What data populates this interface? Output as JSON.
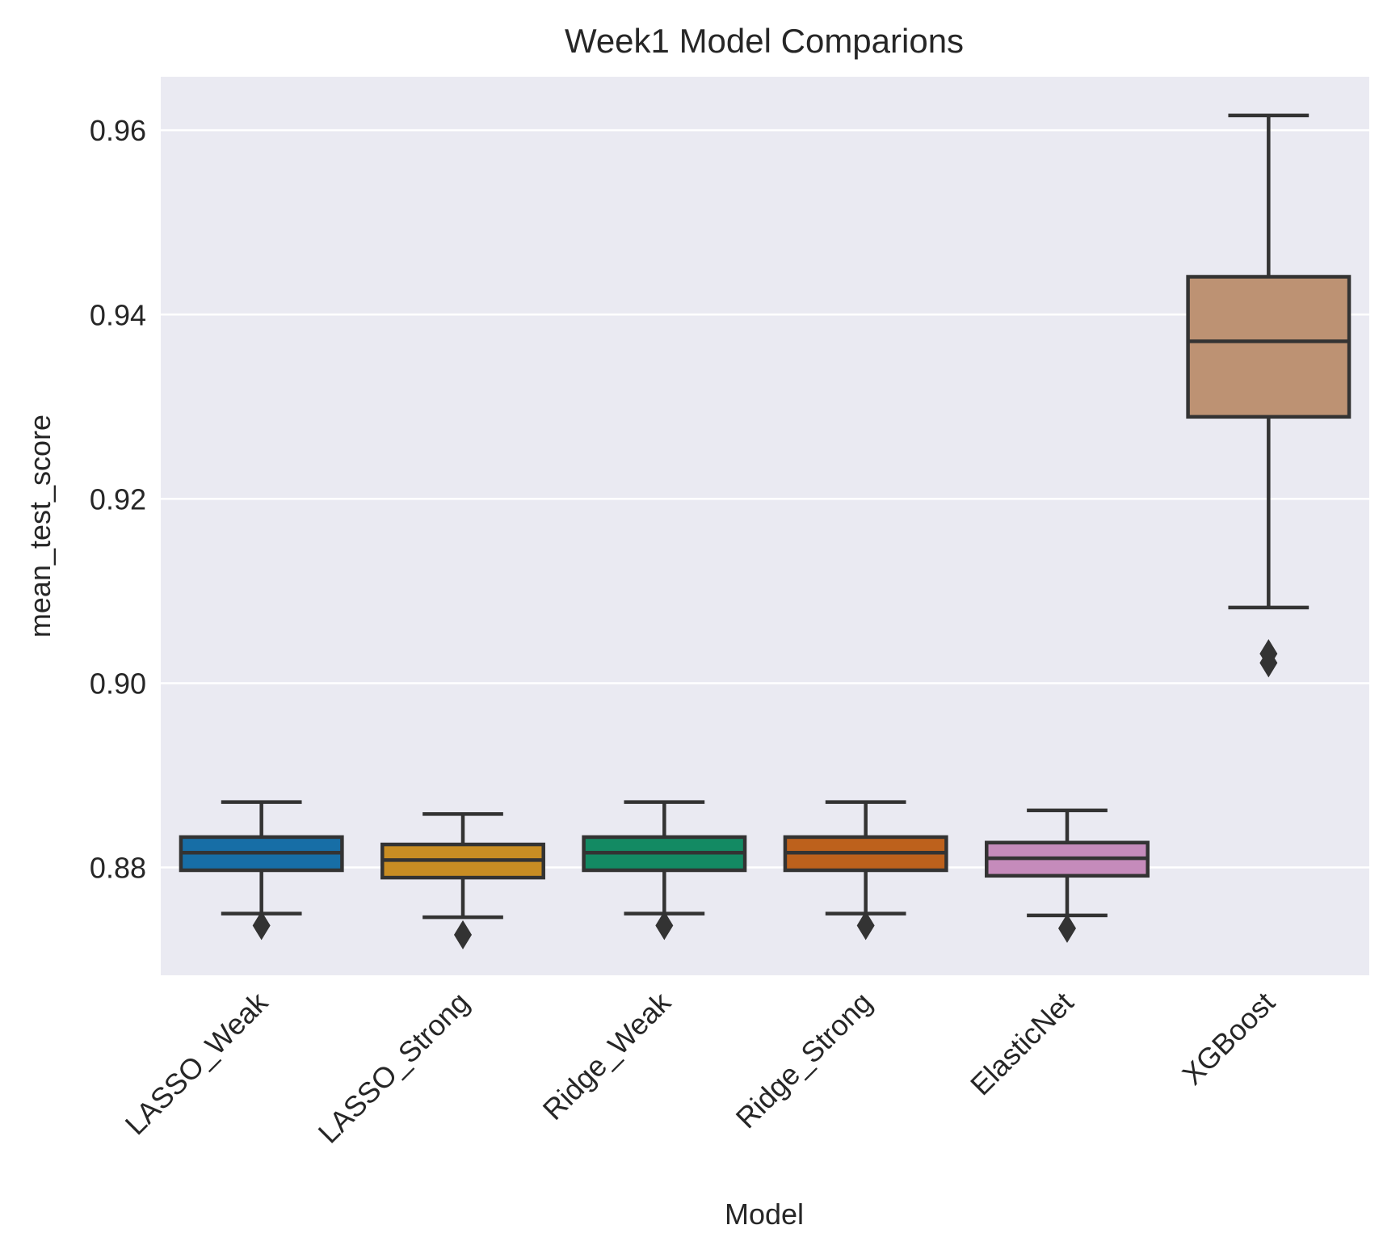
{
  "chart_data": {
    "type": "box",
    "title": "Week1 Model Comparions",
    "xlabel": "Model",
    "ylabel": "mean_test_score",
    "ylim": [
      0.8683,
      0.9658
    ],
    "yticks": [
      0.88,
      0.9,
      0.92,
      0.94,
      0.96
    ],
    "ytick_labels": [
      "0.88",
      "0.90",
      "0.92",
      "0.94",
      "0.96"
    ],
    "grid": true,
    "background": "#eaeaf2",
    "edge_color": "#333333",
    "categories": [
      "LASSO_Weak",
      "LASSO_Strong",
      "Ridge_Weak",
      "Ridge_Strong",
      "ElasticNet",
      "XGBoost"
    ],
    "boxes": [
      {
        "name": "LASSO_Weak",
        "color": "#176ea6",
        "whisker_low": 0.875,
        "q1": 0.8797,
        "median": 0.8816,
        "q3": 0.8833,
        "whisker_high": 0.8871,
        "outliers": [
          0.8737
        ]
      },
      {
        "name": "LASSO_Strong",
        "color": "#c88d23",
        "whisker_low": 0.8746,
        "q1": 0.8789,
        "median": 0.8808,
        "q3": 0.8825,
        "whisker_high": 0.8858,
        "outliers": [
          0.8727
        ]
      },
      {
        "name": "Ridge_Weak",
        "color": "#138a63",
        "whisker_low": 0.875,
        "q1": 0.8797,
        "median": 0.8816,
        "q3": 0.8833,
        "whisker_high": 0.8871,
        "outliers": [
          0.8737
        ]
      },
      {
        "name": "Ridge_Strong",
        "color": "#bd611c",
        "whisker_low": 0.875,
        "q1": 0.8797,
        "median": 0.8816,
        "q3": 0.8833,
        "whisker_high": 0.8871,
        "outliers": [
          0.8737
        ]
      },
      {
        "name": "ElasticNet",
        "color": "#c58bbb",
        "whisker_low": 0.8748,
        "q1": 0.8791,
        "median": 0.881,
        "q3": 0.8827,
        "whisker_high": 0.8862,
        "outliers": [
          0.8734
        ]
      },
      {
        "name": "XGBoost",
        "color": "#bd9273",
        "whisker_low": 0.9082,
        "q1": 0.9289,
        "median": 0.9371,
        "q3": 0.9441,
        "whisker_high": 0.9616,
        "outliers": [
          0.9032,
          0.9022
        ]
      }
    ]
  }
}
